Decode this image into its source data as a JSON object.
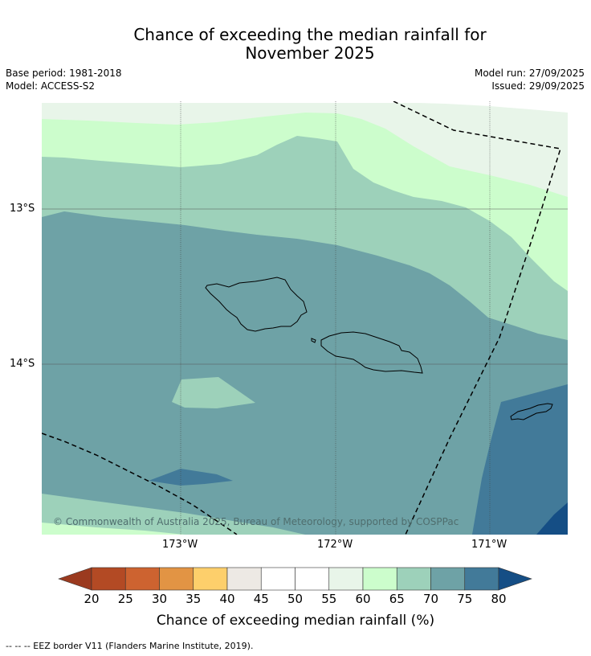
{
  "title_line1": "Chance of exceeding the median rainfall for",
  "title_line2": "November 2025",
  "base_period": "Base period: 1981-2018",
  "model": "Model: ACCESS-S2",
  "model_run": "Model run: 27/09/2025",
  "issued": "Issued: 29/09/2025",
  "lat_ticks": [
    "13°S",
    "14°S"
  ],
  "lon_ticks": [
    "173°W",
    "172°W",
    "171°W"
  ],
  "copyright": "© Commonwealth of Australia 2025, Bureau of Meteorology, supported by COSPPac",
  "colorbar": {
    "title": "Chance of exceeding median rainfall (%)",
    "ticks": [
      "20",
      "25",
      "30",
      "35",
      "40",
      "45",
      "50",
      "55",
      "60",
      "65",
      "70",
      "75",
      "80"
    ],
    "colors": {
      "below20": "#9b3a1f",
      "20-25": "#b34a24",
      "25-30": "#cd6330",
      "30-35": "#e29444",
      "35-40": "#fdcf6b",
      "40-45": "#ede9e4",
      "45-50": "#ffffff",
      "50-55": "#ffffff",
      "55-60": "#e8f5e9",
      "60-65": "#ccfdcc",
      "65-70": "#9dd1ba",
      "70-75": "#6ea2a6",
      "75-80": "#427a99",
      "above80": "#154e85"
    }
  },
  "footnote": "-- -- -- EEZ border V11 (Flanders Marine Institute, 2019)."
}
